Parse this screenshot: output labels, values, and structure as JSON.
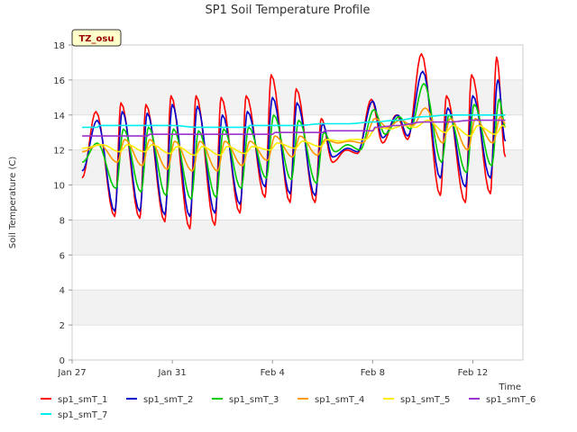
{
  "chart_data": {
    "type": "line",
    "title": "SP1 Soil Temperature Profile",
    "xlabel": "Time",
    "ylabel": "Soil Temperature (C)",
    "ylim": [
      0,
      18
    ],
    "xlim_days_from_jan27": [
      0,
      18
    ],
    "y_ticks": [
      "0",
      "2",
      "4",
      "6",
      "8",
      "10",
      "12",
      "14",
      "16",
      "18"
    ],
    "x_ticks": [
      {
        "label": "Jan 27",
        "day": 0
      },
      {
        "label": "Jan 31",
        "day": 4
      },
      {
        "label": "Feb 4",
        "day": 8
      },
      {
        "label": "Feb 8",
        "day": 12
      },
      {
        "label": "Feb 12",
        "day": 16
      }
    ],
    "grid": true,
    "legend_position": "bottom",
    "site_badge": "TZ_osu",
    "series": [
      {
        "name": "sp1_smT_1",
        "color": "#ff0000",
        "daily": [
          [
            0.4,
            10.4
          ],
          [
            0.95,
            14.2
          ],
          [
            1.7,
            8.2
          ],
          [
            1.95,
            14.7
          ],
          [
            2.7,
            8.1
          ],
          [
            2.95,
            14.6
          ],
          [
            3.7,
            7.9
          ],
          [
            3.95,
            15.1
          ],
          [
            4.7,
            7.5
          ],
          [
            4.95,
            15.1
          ],
          [
            5.7,
            7.7
          ],
          [
            5.95,
            15.0
          ],
          [
            6.7,
            8.4
          ],
          [
            6.95,
            15.1
          ],
          [
            7.7,
            9.3
          ],
          [
            7.95,
            16.3
          ],
          [
            8.7,
            9.0
          ],
          [
            8.95,
            15.5
          ],
          [
            9.7,
            9.0
          ],
          [
            9.95,
            13.8
          ],
          [
            10.4,
            11.3
          ],
          [
            10.95,
            12.0
          ],
          [
            11.4,
            11.8
          ],
          [
            11.95,
            14.9
          ],
          [
            12.4,
            12.4
          ],
          [
            12.95,
            14.0
          ],
          [
            13.4,
            12.6
          ],
          [
            13.95,
            17.5
          ],
          [
            14.7,
            9.4
          ],
          [
            14.95,
            15.1
          ],
          [
            15.7,
            9.0
          ],
          [
            15.95,
            16.3
          ],
          [
            16.7,
            9.5
          ],
          [
            16.95,
            17.3
          ],
          [
            17.3,
            11.6
          ]
        ]
      },
      {
        "name": "sp1_smT_2",
        "color": "#0000cc",
        "daily": [
          [
            0.4,
            10.8
          ],
          [
            1.0,
            13.7
          ],
          [
            1.7,
            8.5
          ],
          [
            2.0,
            14.2
          ],
          [
            2.7,
            8.5
          ],
          [
            3.0,
            14.1
          ],
          [
            3.7,
            8.3
          ],
          [
            4.0,
            14.6
          ],
          [
            4.7,
            8.2
          ],
          [
            5.0,
            14.5
          ],
          [
            5.7,
            8.4
          ],
          [
            6.0,
            14.0
          ],
          [
            6.7,
            8.9
          ],
          [
            7.0,
            14.2
          ],
          [
            7.7,
            9.9
          ],
          [
            8.0,
            15.0
          ],
          [
            8.7,
            9.5
          ],
          [
            8.98,
            14.7
          ],
          [
            9.7,
            9.4
          ],
          [
            10.0,
            13.5
          ],
          [
            10.4,
            11.6
          ],
          [
            11.0,
            12.1
          ],
          [
            11.4,
            11.9
          ],
          [
            12.0,
            14.8
          ],
          [
            12.4,
            12.7
          ],
          [
            13.0,
            14.0
          ],
          [
            13.4,
            12.8
          ],
          [
            14.0,
            16.5
          ],
          [
            14.7,
            10.4
          ],
          [
            15.0,
            14.4
          ],
          [
            15.7,
            9.9
          ],
          [
            16.0,
            15.1
          ],
          [
            16.7,
            10.4
          ],
          [
            17.0,
            16.0
          ],
          [
            17.3,
            12.5
          ]
        ]
      },
      {
        "name": "sp1_smT_3",
        "color": "#00cc00",
        "daily": [
          [
            0.4,
            11.3
          ],
          [
            1.0,
            12.4
          ],
          [
            1.75,
            9.8
          ],
          [
            2.05,
            13.2
          ],
          [
            2.75,
            9.6
          ],
          [
            3.05,
            13.3
          ],
          [
            3.75,
            9.4
          ],
          [
            4.05,
            13.2
          ],
          [
            4.75,
            9.2
          ],
          [
            5.05,
            13.1
          ],
          [
            5.75,
            9.3
          ],
          [
            6.05,
            13.2
          ],
          [
            6.75,
            9.8
          ],
          [
            7.05,
            13.3
          ],
          [
            7.75,
            10.4
          ],
          [
            8.05,
            14.0
          ],
          [
            8.75,
            10.3
          ],
          [
            9.05,
            13.7
          ],
          [
            9.75,
            10.1
          ],
          [
            10.05,
            13.0
          ],
          [
            10.5,
            11.9
          ],
          [
            11.0,
            12.3
          ],
          [
            11.5,
            12.0
          ],
          [
            12.05,
            14.3
          ],
          [
            12.5,
            12.9
          ],
          [
            13.05,
            13.9
          ],
          [
            13.5,
            13.2
          ],
          [
            14.05,
            15.8
          ],
          [
            14.75,
            11.3
          ],
          [
            15.05,
            14.0
          ],
          [
            15.75,
            10.7
          ],
          [
            16.05,
            14.6
          ],
          [
            16.75,
            11.1
          ],
          [
            17.05,
            14.9
          ],
          [
            17.3,
            13.3
          ]
        ]
      },
      {
        "name": "sp1_smT_4",
        "color": "#ff9900",
        "daily": [
          [
            0.4,
            11.9
          ],
          [
            1.1,
            12.3
          ],
          [
            1.8,
            11.3
          ],
          [
            2.1,
            12.6
          ],
          [
            2.8,
            11.1
          ],
          [
            3.1,
            12.6
          ],
          [
            3.8,
            10.9
          ],
          [
            4.1,
            12.5
          ],
          [
            4.8,
            10.8
          ],
          [
            5.1,
            12.5
          ],
          [
            5.8,
            10.8
          ],
          [
            6.1,
            12.5
          ],
          [
            6.8,
            11.1
          ],
          [
            7.1,
            12.5
          ],
          [
            7.8,
            11.4
          ],
          [
            8.1,
            12.8
          ],
          [
            8.8,
            11.6
          ],
          [
            9.1,
            12.8
          ],
          [
            9.8,
            11.7
          ],
          [
            10.1,
            12.6
          ],
          [
            10.6,
            12.4
          ],
          [
            11.1,
            12.5
          ],
          [
            11.6,
            12.4
          ],
          [
            12.1,
            13.8
          ],
          [
            12.6,
            13.3
          ],
          [
            13.1,
            13.7
          ],
          [
            13.6,
            13.4
          ],
          [
            14.1,
            14.4
          ],
          [
            14.8,
            12.4
          ],
          [
            15.1,
            13.8
          ],
          [
            15.8,
            12.0
          ],
          [
            16.1,
            13.8
          ],
          [
            16.8,
            12.4
          ],
          [
            17.1,
            13.9
          ],
          [
            17.3,
            13.5
          ]
        ]
      },
      {
        "name": "sp1_smT_5",
        "color": "#ffee00",
        "daily": [
          [
            0.4,
            12.1
          ],
          [
            1.2,
            12.3
          ],
          [
            1.9,
            11.9
          ],
          [
            2.2,
            12.3
          ],
          [
            2.9,
            11.9
          ],
          [
            3.2,
            12.3
          ],
          [
            3.9,
            11.8
          ],
          [
            4.2,
            12.2
          ],
          [
            4.9,
            11.7
          ],
          [
            5.2,
            12.2
          ],
          [
            5.9,
            11.7
          ],
          [
            6.2,
            12.2
          ],
          [
            6.9,
            11.8
          ],
          [
            7.2,
            12.2
          ],
          [
            7.9,
            12.0
          ],
          [
            8.2,
            12.4
          ],
          [
            8.9,
            12.1
          ],
          [
            9.2,
            12.5
          ],
          [
            9.9,
            12.2
          ],
          [
            10.2,
            12.6
          ],
          [
            10.7,
            12.5
          ],
          [
            11.2,
            12.6
          ],
          [
            11.7,
            12.6
          ],
          [
            12.2,
            13.3
          ],
          [
            12.7,
            13.2
          ],
          [
            13.2,
            13.4
          ],
          [
            13.7,
            13.3
          ],
          [
            14.2,
            13.7
          ],
          [
            14.9,
            13.0
          ],
          [
            15.2,
            13.4
          ],
          [
            15.9,
            12.8
          ],
          [
            16.2,
            13.4
          ],
          [
            16.9,
            12.9
          ],
          [
            17.2,
            13.4
          ],
          [
            17.3,
            13.3
          ]
        ]
      },
      {
        "name": "sp1_smT_6",
        "color": "#9933cc",
        "daily": [
          [
            0.4,
            12.8
          ],
          [
            3.0,
            12.8
          ],
          [
            3.1,
            12.9
          ],
          [
            6.0,
            12.9
          ],
          [
            8.0,
            12.9
          ],
          [
            8.1,
            13.0
          ],
          [
            10.0,
            13.0
          ],
          [
            10.1,
            13.1
          ],
          [
            12.0,
            13.1
          ],
          [
            12.1,
            13.3
          ],
          [
            13.0,
            13.4
          ],
          [
            14.0,
            13.6
          ],
          [
            15.0,
            13.6
          ],
          [
            16.0,
            13.7
          ],
          [
            17.3,
            13.7
          ]
        ]
      },
      {
        "name": "sp1_smT_7",
        "color": "#00eeee",
        "daily": [
          [
            0.4,
            13.3
          ],
          [
            1.0,
            13.3
          ],
          [
            1.1,
            13.4
          ],
          [
            4.0,
            13.4
          ],
          [
            5.0,
            13.3
          ],
          [
            7.0,
            13.3
          ],
          [
            7.1,
            13.4
          ],
          [
            9.0,
            13.4
          ],
          [
            10.0,
            13.5
          ],
          [
            11.0,
            13.5
          ],
          [
            12.0,
            13.6
          ],
          [
            13.0,
            13.7
          ],
          [
            14.0,
            13.9
          ],
          [
            15.0,
            14.0
          ],
          [
            16.0,
            14.0
          ],
          [
            17.3,
            14.0
          ]
        ]
      }
    ]
  }
}
